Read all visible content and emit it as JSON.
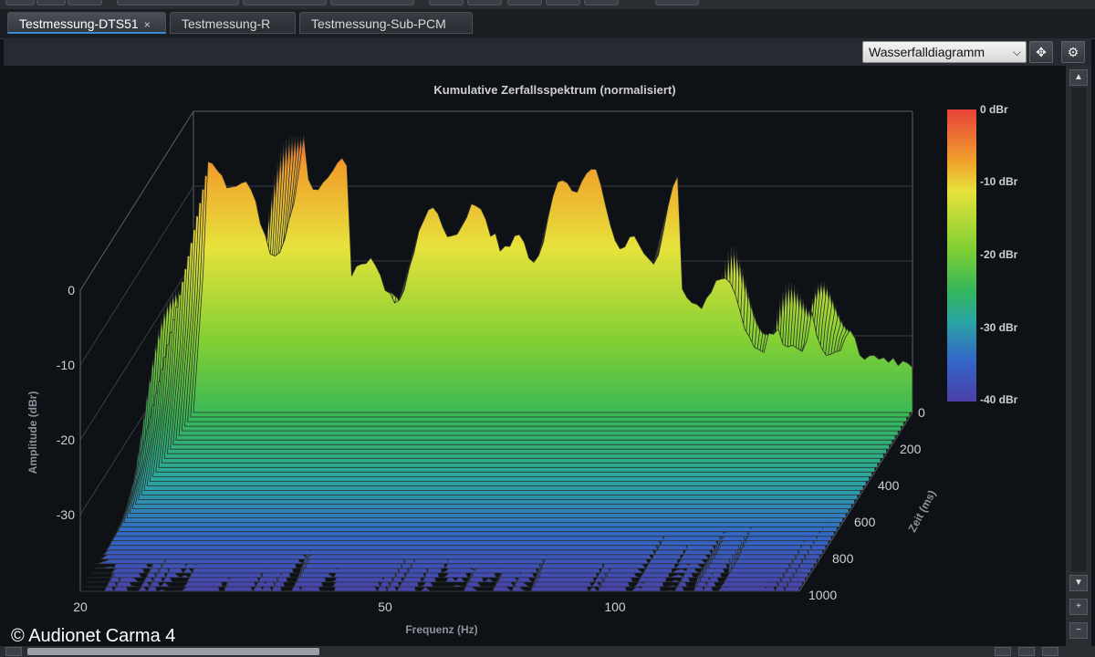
{
  "tabs": [
    {
      "label": "Testmessung-DTS51",
      "active": true,
      "closable": true
    },
    {
      "label": "Testmessung-R",
      "active": false
    },
    {
      "label": "Testmessung-Sub-PCM",
      "active": false
    }
  ],
  "tab_close_glyph": "×",
  "toolbar": {
    "view_select_value": "Wasserfalldiagramm",
    "move_icon": "move-icon",
    "settings_icon": "gear-icon"
  },
  "chart_data": {
    "type": "waterfall",
    "title": "Kumulative Zerfallsspektrum (normalisiert)",
    "xlabel": "Frequenz (Hz)",
    "ylabel": "Amplitude (dBr)",
    "zlabel": "Zeit (ms)",
    "x_ticks": [
      "20",
      "50",
      "100"
    ],
    "x_scale": "log",
    "xlim": [
      20,
      200
    ],
    "y_ticks": [
      "0",
      "-10",
      "-20",
      "-30"
    ],
    "ylim": [
      -40,
      0
    ],
    "z_ticks": [
      "0",
      "200",
      "400",
      "600",
      "800",
      "1000"
    ],
    "zlim": [
      0,
      1000
    ],
    "colorbar": {
      "labels": [
        "0 dBr",
        "-10 dBr",
        "-20 dBr",
        "-30 dBr",
        "-40 dBr"
      ],
      "range": [
        -40,
        0
      ],
      "colors": [
        "#e8413a",
        "#f0a22c",
        "#e7e23b",
        "#7fcf33",
        "#34b65a",
        "#2aa7a0",
        "#3366c8",
        "#4a3fa8"
      ]
    },
    "grid": true
  },
  "footer": {
    "copyright": "© Audionet Carma 4"
  },
  "colors": {
    "background": "#0e1116",
    "accent": "#3b8ad6"
  }
}
